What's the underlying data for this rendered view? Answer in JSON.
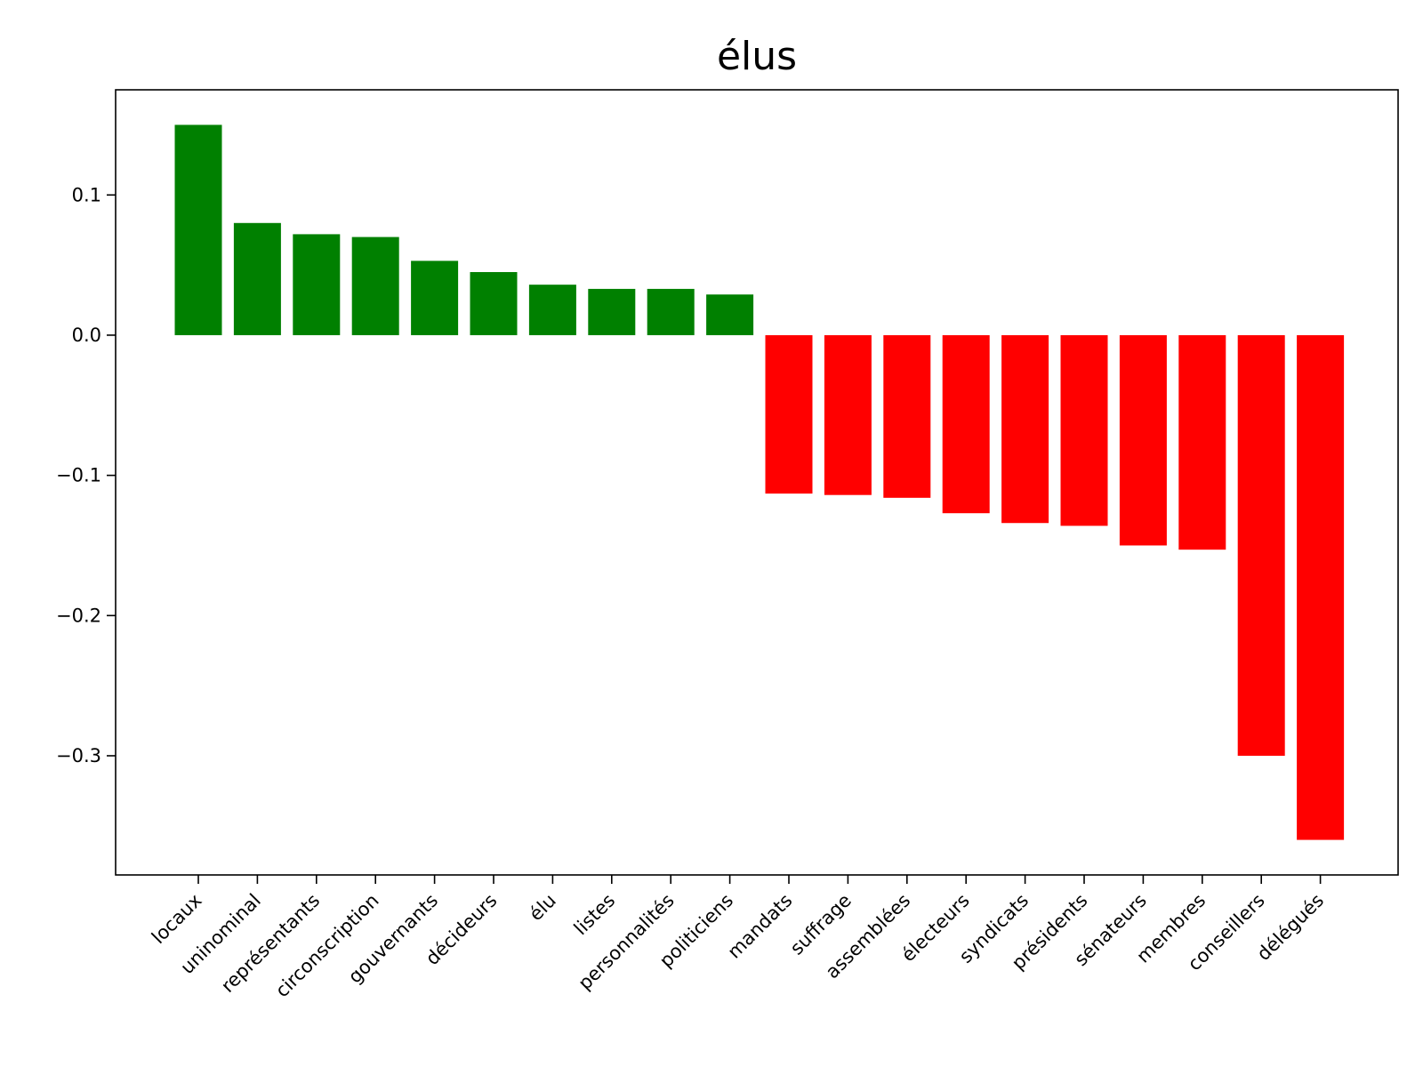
{
  "chart_data": {
    "type": "bar",
    "title": "élus",
    "xlabel": "",
    "ylabel": "",
    "categories": [
      "locaux",
      "uninominal",
      "représentants",
      "circonscription",
      "gouvernants",
      "décideurs",
      "élu",
      "listes",
      "personnalités",
      "politiciens",
      "mandats",
      "suffrage",
      "assemblées",
      "électeurs",
      "syndicats",
      "présidents",
      "sénateurs",
      "membres",
      "conseillers",
      "délégués"
    ],
    "values": [
      0.15,
      0.08,
      0.072,
      0.07,
      0.053,
      0.045,
      0.036,
      0.033,
      0.033,
      0.029,
      -0.113,
      -0.114,
      -0.116,
      -0.127,
      -0.134,
      -0.136,
      -0.15,
      -0.153,
      -0.3,
      -0.36
    ],
    "ylim": [
      -0.385,
      0.175
    ],
    "yticks": [
      0.1,
      0.0,
      -0.1,
      -0.2,
      -0.3
    ],
    "ytick_labels": [
      "0.1",
      "0.0",
      "−0.1",
      "−0.2",
      "−0.3"
    ],
    "grid": false,
    "legend": "none",
    "colors": {
      "positive": "#008000",
      "negative": "#ff0000"
    }
  }
}
